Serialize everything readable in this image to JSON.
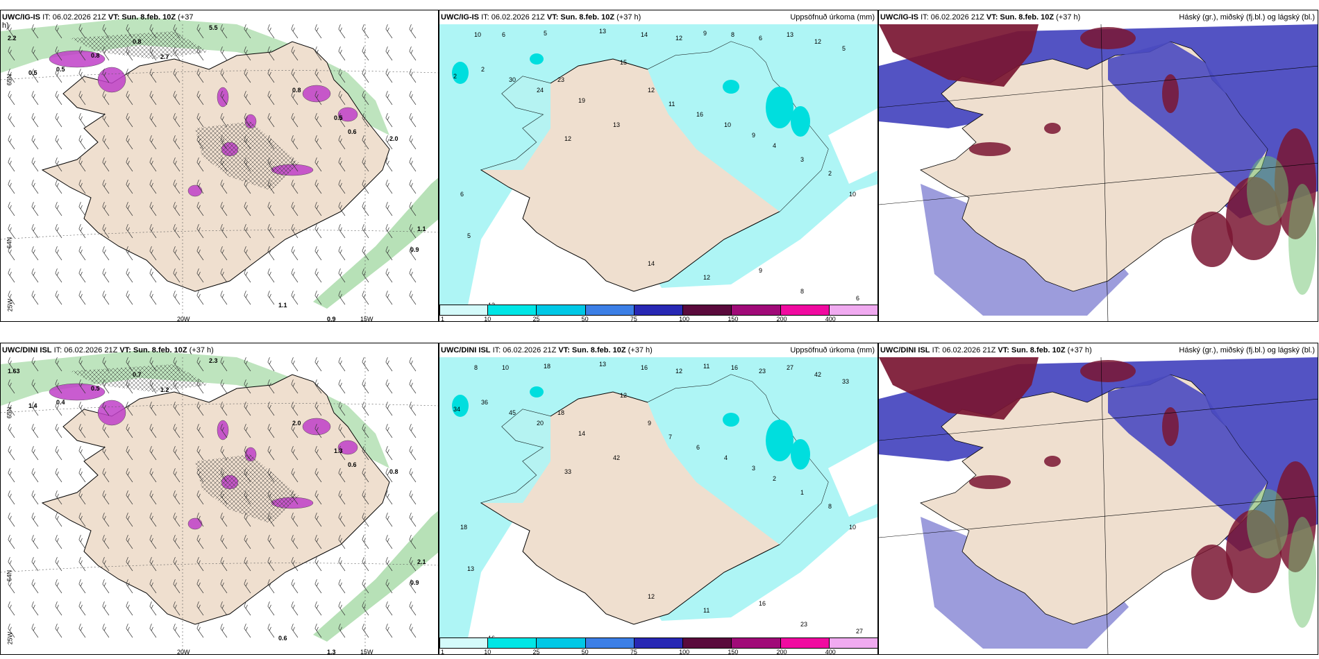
{
  "panels": [
    {
      "id": "a",
      "model": "UWC/IG-IS",
      "it": "IT: 06.02.2026 21Z",
      "vt": "VT: Sun. 8.feb. 10Z",
      "lead": "(+37",
      "lead2": "h)",
      "unit": "",
      "kind": "wind",
      "labels": [
        "2.2",
        "0.5",
        "0.5",
        "0.8",
        "0.8",
        "2.7",
        "5.5",
        "0.8",
        "0.5",
        "0.6",
        "2.0",
        "1.1",
        "0.9",
        "0.9",
        "1.1"
      ],
      "axes": {
        "lat1": "65N",
        "lat2": "64N",
        "lon0": "25W",
        "lon1": "20W",
        "lon2": "15W"
      }
    },
    {
      "id": "b",
      "model": "UWC/IG-IS",
      "it": "IT: 06.02.2026 21Z",
      "vt": "VT: Sun. 8.feb. 10Z",
      "lead": "(+37 h)",
      "unit": "Uppsöfnuð úrkoma (mm)",
      "kind": "precip",
      "labels": [
        "10",
        "6",
        "5",
        "13",
        "14",
        "12",
        "9",
        "8",
        "6",
        "13",
        "12",
        "5",
        "2",
        "2",
        "30",
        "24",
        "23",
        "19",
        "15",
        "12",
        "11",
        "16",
        "10",
        "9",
        "4",
        "3",
        "2"
      ]
    },
    {
      "id": "c",
      "model": "UWC/IG-IS",
      "it": "IT: 06.02.2026 21Z",
      "vt": "VT: Sun. 8.feb. 10Z",
      "lead": "(+37 h)",
      "unit": "Háský (gr.), miðský (fj.bl.) og lágský (bl.)",
      "kind": "cloud"
    },
    {
      "id": "d",
      "model": "UWC/DINI ISL",
      "it": "IT: 06.02.2026 21Z",
      "vt": "VT: Sun. 8.feb. 10Z",
      "lead": "(+37 h)",
      "unit": "",
      "kind": "wind",
      "labels": [
        "1.63",
        "1.4",
        "0.4",
        "0.5",
        "0.7",
        "1.2",
        "2.3",
        "2.0",
        "1.3",
        "0.6",
        "0.8",
        "2.1",
        "0.9",
        "1.3",
        "0.6"
      ],
      "axes": {
        "lat1": "65N",
        "lat2": "64N",
        "lon0": "25W",
        "lon1": "20W",
        "lon2": "15W"
      }
    },
    {
      "id": "e",
      "model": "UWC/DINI ISL",
      "it": "IT: 06.02.2026 21Z",
      "vt": "VT: Sun. 8.feb. 10Z",
      "lead": "(+37 h)",
      "unit": "Uppsöfnuð úrkoma (mm)",
      "kind": "precip",
      "labels": [
        "8",
        "10",
        "18",
        "13",
        "16",
        "12",
        "11",
        "16",
        "23",
        "27",
        "42",
        "33",
        "34",
        "36",
        "45",
        "20",
        "18",
        "14",
        "12",
        "9",
        "7",
        "6",
        "4",
        "3",
        "2",
        "1"
      ]
    },
    {
      "id": "f",
      "model": "UWC/DINI ISL",
      "it": "IT: 06.02.2026 21Z",
      "vt": "VT: Sun. 8.feb. 10Z",
      "lead": "(+37 h)",
      "unit": "Háský (gr.), miðský (fj.bl.) og lágský (bl.)",
      "kind": "cloud"
    }
  ],
  "colorbar": {
    "ticks": [
      "1",
      "10",
      "25",
      "50",
      "75",
      "100",
      "150",
      "200",
      "400"
    ],
    "colors": [
      "#d4fafa",
      "#00e6e6",
      "#00c8e6",
      "#3c7fe6",
      "#2828b4",
      "#5a0a3c",
      "#a00a78",
      "#f00aa0",
      "#f0aaf0"
    ]
  },
  "colors": {
    "land": "#efdfcf",
    "sea": "#ffffff",
    "precip_light": "#aef5f5",
    "cloud_high": "#7a1632",
    "cloud_mid": "#4a4ac0",
    "green": "#6fc46f",
    "purple": "#c040c8"
  }
}
